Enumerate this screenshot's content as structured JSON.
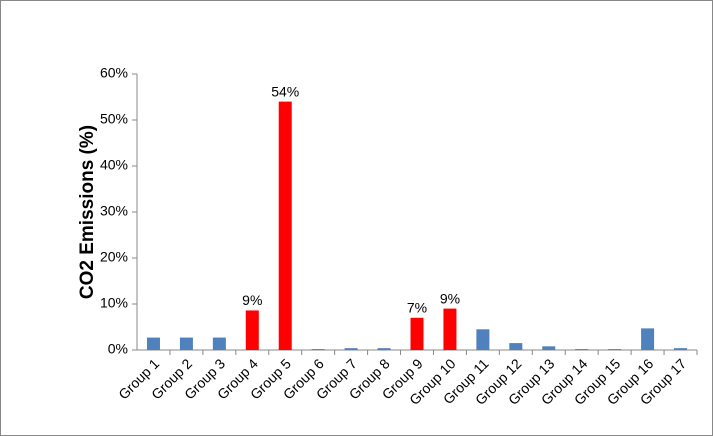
{
  "chart_data": {
    "type": "bar",
    "y_label": "CO2 Emissions (%)",
    "categories": [
      "Group 1",
      "Group 2",
      "Group 3",
      "Group 4",
      "Group 5",
      "Group 6",
      "Group 7",
      "Group 8",
      "Group 9",
      "Group 10",
      "Group 11",
      "Group 12",
      "Group 13",
      "Group 14",
      "Group 15",
      "Group 16",
      "Group 17"
    ],
    "values": [
      2.7,
      2.7,
      2.7,
      8.6,
      54,
      0.2,
      0.4,
      0.4,
      7,
      9,
      4.5,
      1.5,
      0.8,
      0.2,
      0.2,
      4.7,
      0.4
    ],
    "value_labels": [
      null,
      null,
      null,
      "9%",
      "54%",
      null,
      null,
      null,
      "7%",
      "9%",
      null,
      null,
      null,
      null,
      null,
      null,
      null
    ],
    "colors": [
      "#4f81bd",
      "#4f81bd",
      "#4f81bd",
      "#ff0000",
      "#ff0000",
      "#4f81bd",
      "#4f81bd",
      "#4f81bd",
      "#ff0000",
      "#ff0000",
      "#4f81bd",
      "#4f81bd",
      "#4f81bd",
      "#4f81bd",
      "#4f81bd",
      "#4f81bd",
      "#4f81bd"
    ],
    "ylim": [
      0,
      60
    ],
    "yticks": [
      {
        "value": 0,
        "label": "0%"
      },
      {
        "value": 10,
        "label": "10%"
      },
      {
        "value": 20,
        "label": "20%"
      },
      {
        "value": 30,
        "label": "30%"
      },
      {
        "value": 40,
        "label": "40%"
      },
      {
        "value": 50,
        "label": "50%"
      },
      {
        "value": 60,
        "label": "60%"
      }
    ],
    "grid": false
  }
}
